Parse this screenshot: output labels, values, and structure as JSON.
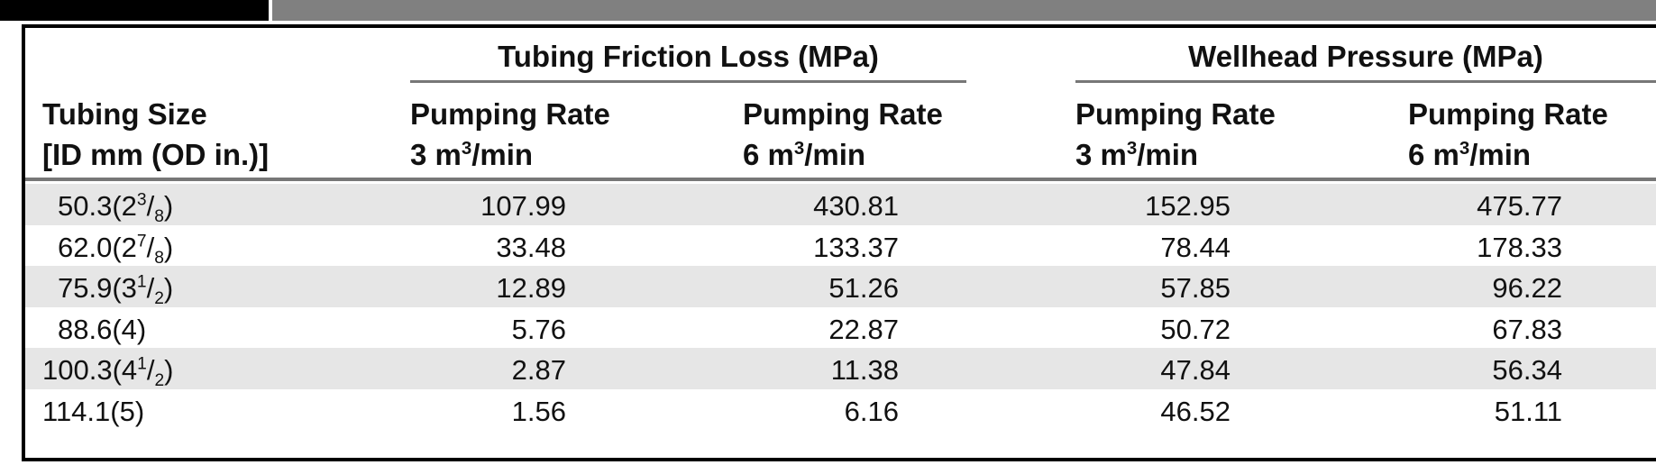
{
  "table": {
    "groups": [
      "Tubing Friction Loss (MPa)",
      "Wellhead Pressure (MPa)"
    ],
    "stub_header": [
      "Tubing Size",
      "[ID mm (OD in.)]"
    ],
    "columns": [
      {
        "line1": "Pumping Rate",
        "line2": [
          {
            "t": "3 m"
          },
          {
            "t": "3",
            "s": "sup"
          },
          {
            "t": "/min"
          }
        ]
      },
      {
        "line1": "Pumping Rate",
        "line2": [
          {
            "t": "6 m"
          },
          {
            "t": "3",
            "s": "sup"
          },
          {
            "t": "/min"
          }
        ]
      },
      {
        "line1": "Pumping Rate",
        "line2": [
          {
            "t": "3 m"
          },
          {
            "t": "3",
            "s": "sup"
          },
          {
            "t": "/min"
          }
        ]
      },
      {
        "line1": "Pumping Rate",
        "line2": [
          {
            "t": "6 m"
          },
          {
            "t": "3",
            "s": "sup"
          },
          {
            "t": "/min"
          }
        ]
      }
    ],
    "rows": [
      {
        "label": [
          {
            "t": "50.3(2"
          },
          {
            "t": "3",
            "s": "sup"
          },
          {
            "t": "/"
          },
          {
            "t": "8",
            "s": "sub"
          },
          {
            "t": ")"
          }
        ],
        "values": [
          107.99,
          430.81,
          152.95,
          475.77
        ]
      },
      {
        "label": [
          {
            "t": "62.0(2"
          },
          {
            "t": "7",
            "s": "sup"
          },
          {
            "t": "/"
          },
          {
            "t": "8",
            "s": "sub"
          },
          {
            "t": ")"
          }
        ],
        "values": [
          33.48,
          133.37,
          78.44,
          178.33
        ]
      },
      {
        "label": [
          {
            "t": "75.9(3"
          },
          {
            "t": "1",
            "s": "sup"
          },
          {
            "t": "/"
          },
          {
            "t": "2",
            "s": "sub"
          },
          {
            "t": ")"
          }
        ],
        "values": [
          12.89,
          51.26,
          57.85,
          96.22
        ]
      },
      {
        "label": [
          {
            "t": "88.6(4)"
          }
        ],
        "values": [
          5.76,
          22.87,
          50.72,
          67.83
        ]
      },
      {
        "label": [
          {
            "t": "100.3(4"
          },
          {
            "t": "1",
            "s": "sup"
          },
          {
            "t": "/"
          },
          {
            "t": "2",
            "s": "sub"
          },
          {
            "t": ")"
          }
        ],
        "values": [
          2.87,
          11.38,
          47.84,
          56.34
        ]
      },
      {
        "label": [
          {
            "t": "114.1(5)"
          }
        ],
        "values": [
          1.56,
          6.16,
          46.52,
          51.11
        ]
      }
    ]
  }
}
